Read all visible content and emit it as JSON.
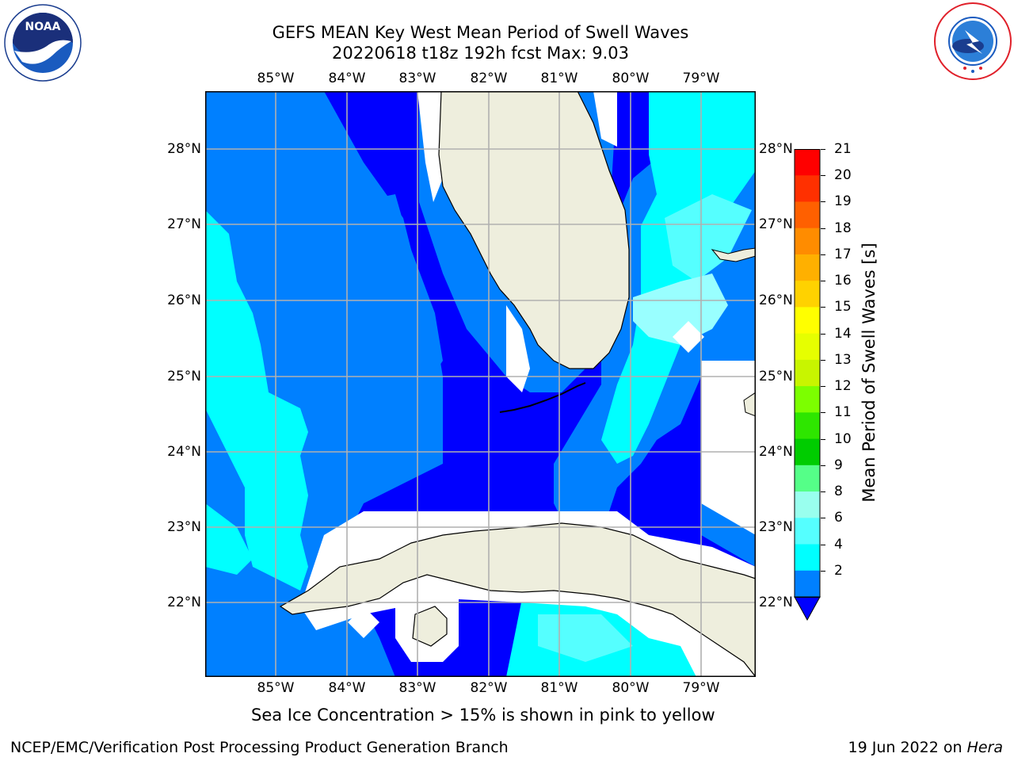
{
  "title": {
    "line1": "GEFS MEAN Key West Mean Period of Swell Waves",
    "line2": "20220618 t18z 192h fcst   Max: 9.03"
  },
  "map": {
    "lon_labels": [
      "85°W",
      "84°W",
      "83°W",
      "82°W",
      "81°W",
      "80°W",
      "79°W"
    ],
    "lat_labels": [
      "28°N",
      "27°N",
      "26°N",
      "25°N",
      "24°N",
      "23°N",
      "22°N"
    ]
  },
  "colorbar": {
    "label": "Mean Period of Swell Waves [s]",
    "ticks": [
      "21",
      "20",
      "19",
      "18",
      "17",
      "16",
      "15",
      "14",
      "13",
      "12",
      "11",
      "10",
      "9",
      "8",
      "6",
      "4",
      "2"
    ],
    "colors": [
      "#ff0000",
      "#ff3000",
      "#ff6000",
      "#ff8c00",
      "#ffb000",
      "#ffd200",
      "#ffff00",
      "#e6ff00",
      "#c8f500",
      "#7cff00",
      "#2ee600",
      "#00cc00",
      "#55ff88",
      "#99ffee",
      "#55ffff",
      "#00ffff",
      "#0080ff",
      "#0000ff"
    ]
  },
  "colors": {
    "land": "#eeeedd",
    "deep_blue": "#0000ff",
    "mid_blue": "#0080ff",
    "cyan": "#00ffff",
    "light_cyan": "#99ffff",
    "grid": "#b0b0b0"
  },
  "notes": {
    "ice": "Sea Ice Concentration > 15% is shown in pink to yellow"
  },
  "footer": {
    "left": "NCEP/EMC/Verification Post Processing Product Generation Branch",
    "date": "19 Jun 2022 on ",
    "host": "Hera"
  },
  "logos": {
    "noaa": "NOAA",
    "nws": "NATIONAL WEATHER SERVICE",
    "noaa_ring": "NATIONAL OCEANIC AND ATMOSPHERIC ADMINISTRATION · U.S. DEPARTMENT OF COMMERCE"
  }
}
